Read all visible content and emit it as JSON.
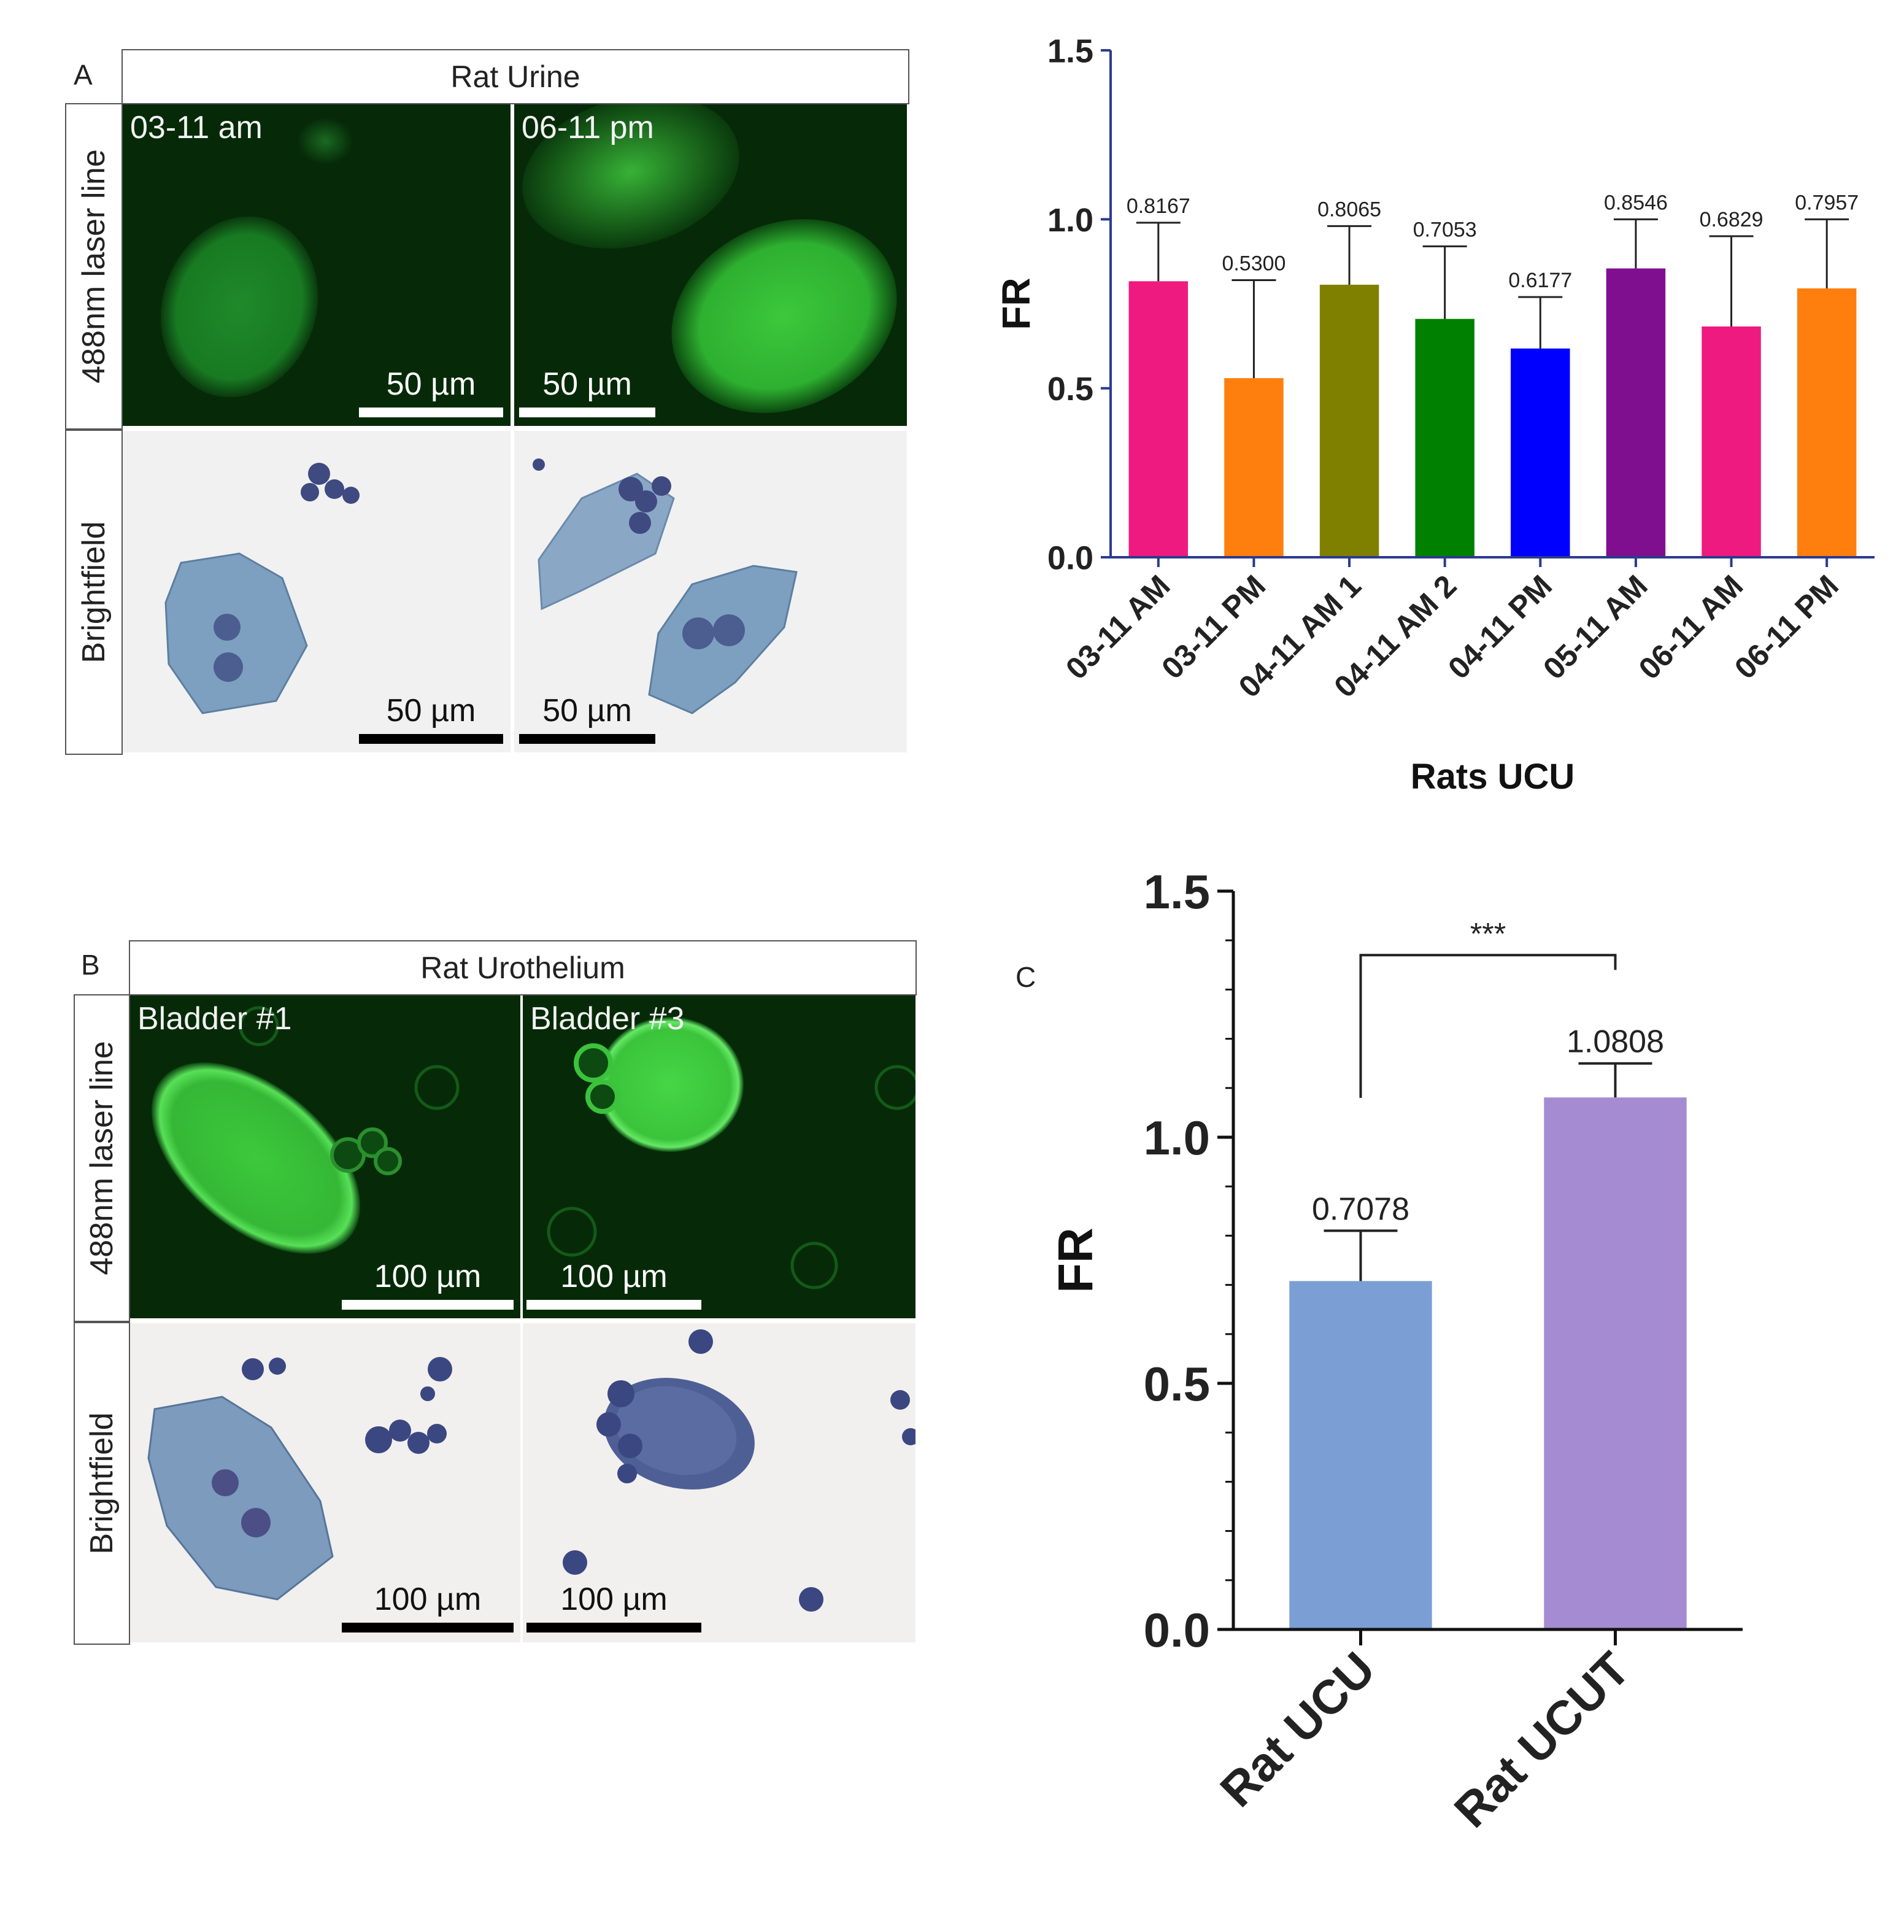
{
  "panel_letters": {
    "a": "A",
    "b": "B",
    "c": "C"
  },
  "panel_a": {
    "title": "Rat Urine",
    "row_fluor": "488nm laser line",
    "row_bright": "Brightfield",
    "img1_label": "03-11 am",
    "img2_label": "06-11 pm",
    "scale": "50 µm"
  },
  "panel_b": {
    "title": "Rat Urothelium",
    "row_fluor": "488nm laser line",
    "row_bright": "Brightfield",
    "img1_label": "Bladder #1",
    "img2_label": "Bladder #3",
    "scale": "100 µm"
  },
  "chart_data": [
    {
      "type": "bar",
      "title": "",
      "xlabel": "Rats UCU",
      "ylabel": "FR",
      "ylim": [
        0,
        1.5
      ],
      "yticks": [
        "0.0",
        "0.5",
        "1.0",
        "1.5"
      ],
      "categories": [
        "03-11 AM",
        "03-11 PM",
        "04-11 AM 1",
        "04-11 AM 2",
        "04-11 PM",
        "05-11 AM",
        "06-11 AM",
        "06-11 PM"
      ],
      "values": [
        0.8167,
        0.53,
        0.8065,
        0.7053,
        0.6177,
        0.8546,
        0.6829,
        0.7957
      ],
      "value_labels": [
        "0.8167",
        "0.5300",
        "0.8065",
        "0.7053",
        "0.6177",
        "0.8546",
        "0.6829",
        "0.7957"
      ],
      "error_upper": [
        0.99,
        0.82,
        0.98,
        0.92,
        0.77,
        1.0,
        0.95,
        1.0
      ],
      "colors": [
        "#ef1a7f",
        "#ff7f0e",
        "#808000",
        "#008000",
        "#0000ff",
        "#7f0f8f",
        "#ef1a7f",
        "#ff7f0e"
      ],
      "grid": false,
      "legend": "none"
    },
    {
      "type": "bar",
      "title": "",
      "xlabel": "",
      "ylabel": "FR",
      "ylim": [
        0,
        1.5
      ],
      "yticks": [
        "0.0",
        "0.5",
        "1.0",
        "1.5"
      ],
      "categories": [
        "Rat UCU",
        "Rat UCUT"
      ],
      "values": [
        0.7078,
        1.0808
      ],
      "value_labels": [
        "0.7078",
        "1.0808"
      ],
      "error_upper": [
        0.81,
        1.15
      ],
      "colors": [
        "#7b9fd4",
        "#a58bd2"
      ],
      "significance": "***",
      "grid": false,
      "legend": "none"
    }
  ]
}
